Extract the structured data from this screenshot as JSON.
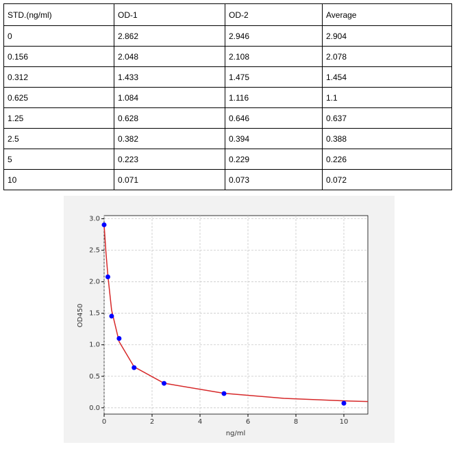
{
  "table": {
    "headers": [
      "STD.(ng/ml)",
      "OD-1",
      "OD-2",
      "Average"
    ],
    "rows": [
      [
        0,
        2.862,
        2.946,
        2.904
      ],
      [
        0.156,
        2.048,
        2.108,
        2.078
      ],
      [
        0.312,
        1.433,
        1.475,
        1.454
      ],
      [
        0.625,
        1.084,
        1.116,
        1.1
      ],
      [
        1.25,
        0.628,
        0.646,
        0.637
      ],
      [
        2.5,
        0.382,
        0.394,
        0.388
      ],
      [
        5,
        0.223,
        0.229,
        0.226
      ],
      [
        10,
        0.071,
        0.073,
        0.072
      ]
    ]
  },
  "chart_data": {
    "type": "scatter",
    "x_label": "ng/ml",
    "y_label": "OD450",
    "x": [
      0,
      0.156,
      0.312,
      0.625,
      1.25,
      2.5,
      5,
      10
    ],
    "series": [
      {
        "type": "scatter",
        "color": "#0000ff",
        "values": [
          2.904,
          2.078,
          1.454,
          1.1,
          0.637,
          0.388,
          0.226,
          0.072
        ]
      },
      {
        "type": "line",
        "color": "#d62728",
        "x": [
          0,
          0.08,
          0.156,
          0.312,
          0.625,
          1.25,
          2.5,
          5,
          7.5,
          10,
          11
        ],
        "values": [
          2.9,
          2.45,
          2.1,
          1.55,
          1.05,
          0.65,
          0.39,
          0.23,
          0.15,
          0.11,
          0.1
        ]
      }
    ],
    "xlim": [
      0,
      11
    ],
    "ylim": [
      -0.1,
      3.05
    ],
    "xticks": [
      0,
      2,
      4,
      6,
      8,
      10
    ],
    "yticks": [
      {
        "value": 0,
        "label": "0.0"
      },
      0.5,
      {
        "value": 1,
        "label": "1.0"
      },
      1.5,
      {
        "value": 2,
        "label": "2.0"
      },
      2.5,
      {
        "value": 3,
        "label": "3.0"
      }
    ],
    "grid": true
  }
}
